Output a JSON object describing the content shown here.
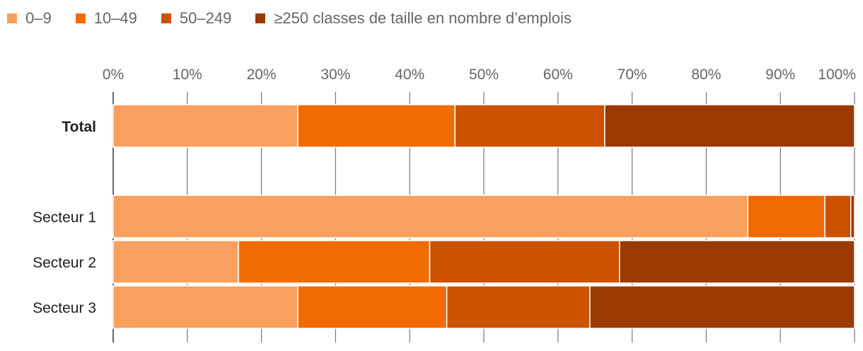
{
  "chart_data": {
    "type": "bar",
    "orientation": "horizontal",
    "stacked": true,
    "normalized": true,
    "title": "",
    "xlabel": "",
    "ylabel": "",
    "xlim": [
      0,
      100
    ],
    "ticks": [
      "0%",
      "10%",
      "20%",
      "30%",
      "40%",
      "50%",
      "60%",
      "70%",
      "80%",
      "90%",
      "100%"
    ],
    "legend": {
      "placement": "top-left"
    },
    "categories": [
      "Total",
      "Secteur 1",
      "Secteur 2",
      "Secteur 3"
    ],
    "category_bold": [
      true,
      false,
      false,
      false
    ],
    "series": [
      {
        "name": "0–9",
        "color": "#f9a05e",
        "values": [
          24.9,
          85.6,
          16.9,
          24.9
        ]
      },
      {
        "name": "10–49",
        "color": "#f26b00",
        "values": [
          21.2,
          10.4,
          25.8,
          20.1
        ]
      },
      {
        "name": "50–249",
        "color": "#cc5200",
        "values": [
          20.2,
          3.5,
          25.6,
          19.3
        ]
      },
      {
        "name": "≥250 classes de taille en nombre d’emplois",
        "color": "#9a3a00",
        "values": [
          33.7,
          0.5,
          31.7,
          35.7
        ]
      }
    ]
  }
}
